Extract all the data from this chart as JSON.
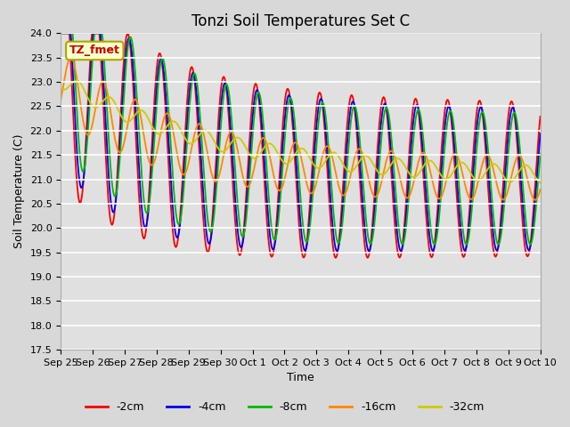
{
  "title": "Tonzi Soil Temperatures Set C",
  "xlabel": "Time",
  "ylabel": "Soil Temperature (C)",
  "ylim": [
    17.5,
    24.0
  ],
  "yticks": [
    17.5,
    18.0,
    18.5,
    19.0,
    19.5,
    20.0,
    20.5,
    21.0,
    21.5,
    22.0,
    22.5,
    23.0,
    23.5,
    24.0
  ],
  "xtick_labels": [
    "Sep 25",
    "Sep 26",
    "Sep 27",
    "Sep 28",
    "Sep 29",
    "Sep 30",
    "Oct 1",
    "Oct 2",
    "Oct 3",
    "Oct 4",
    "Oct 5",
    "Oct 6",
    "Oct 7",
    "Oct 8",
    "Oct 9",
    "Oct 10"
  ],
  "series": [
    {
      "label": "-2cm",
      "color": "#ff0000"
    },
    {
      "label": "-4cm",
      "color": "#0000ff"
    },
    {
      "label": "-8cm",
      "color": "#00bb00"
    },
    {
      "label": "-16cm",
      "color": "#ff8800"
    },
    {
      "label": "-32cm",
      "color": "#cccc00"
    }
  ],
  "annotation_text": "TZ_fmet",
  "annotation_color": "#cc0000",
  "annotation_bg": "#ffffcc",
  "fig_facecolor": "#d8d8d8",
  "ax_facecolor": "#e0e0e0",
  "grid_color": "#ffffff",
  "title_fontsize": 12,
  "axis_fontsize": 9,
  "tick_fontsize": 8,
  "legend_fontsize": 9,
  "linewidth": 1.3
}
